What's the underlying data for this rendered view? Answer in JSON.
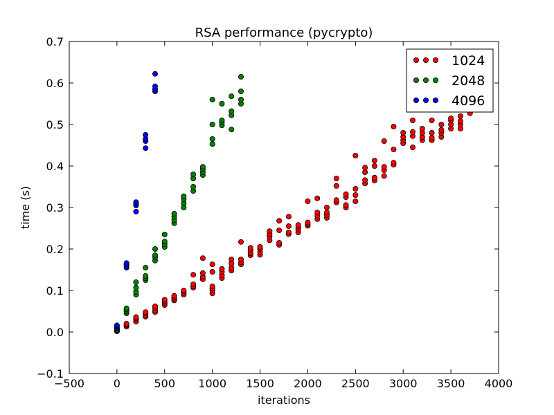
{
  "chart_data": {
    "type": "scatter",
    "title": "RSA performance (pycrypto)",
    "xlabel": "iterations",
    "ylabel": "time (s)",
    "xlim": [
      -500,
      4000
    ],
    "ylim": [
      -0.1,
      0.7
    ],
    "xticks": [
      -500,
      0,
      500,
      1000,
      1500,
      2000,
      2500,
      3000,
      3500,
      4000
    ],
    "xtick_labels": [
      "−500",
      "0",
      "500",
      "1000",
      "1500",
      "2000",
      "2500",
      "3000",
      "3500",
      "4000"
    ],
    "yticks": [
      -0.1,
      0.0,
      0.1,
      0.2,
      0.3,
      0.4,
      0.5,
      0.6,
      0.7
    ],
    "ytick_labels": [
      "−0.1",
      "0.0",
      "0.1",
      "0.2",
      "0.3",
      "0.4",
      "0.5",
      "0.6",
      "0.7"
    ],
    "grid": false,
    "legend_position": "top-right",
    "series": [
      {
        "name": "1024",
        "color": "#ff0000",
        "x": [
          0,
          0,
          0,
          0,
          100,
          100,
          100,
          100,
          200,
          200,
          200,
          200,
          300,
          300,
          300,
          300,
          400,
          400,
          400,
          400,
          500,
          500,
          500,
          500,
          600,
          600,
          600,
          600,
          700,
          700,
          700,
          700,
          800,
          800,
          800,
          800,
          900,
          900,
          900,
          900,
          1000,
          1000,
          1000,
          1000,
          1000,
          1000,
          1100,
          1100,
          1100,
          1100,
          1200,
          1200,
          1200,
          1200,
          1300,
          1300,
          1300,
          1300,
          1400,
          1400,
          1400,
          1400,
          1500,
          1500,
          1500,
          1500,
          1600,
          1600,
          1600,
          1600,
          1700,
          1700,
          1700,
          1700,
          1800,
          1800,
          1800,
          1800,
          1900,
          1900,
          1900,
          1900,
          2000,
          2000,
          2000,
          2000,
          2100,
          2100,
          2100,
          2100,
          2200,
          2200,
          2200,
          2200,
          2300,
          2300,
          2300,
          2300,
          2400,
          2400,
          2400,
          2400,
          2500,
          2500,
          2500,
          2500,
          2600,
          2600,
          2600,
          2600,
          2700,
          2700,
          2700,
          2700,
          2800,
          2800,
          2800,
          2800,
          2900,
          2900,
          2900,
          2900,
          3000,
          3000,
          3000,
          3000,
          3100,
          3100,
          3100,
          3100,
          3200,
          3200,
          3200,
          3200,
          3300,
          3300,
          3300,
          3300,
          3400,
          3400,
          3400,
          3400,
          3500,
          3500,
          3500,
          3500,
          3600,
          3600,
          3600,
          3600,
          3700,
          3700,
          3700
        ],
        "y": [
          0.002,
          0.004,
          0.006,
          0.008,
          0.013,
          0.016,
          0.018,
          0.02,
          0.025,
          0.03,
          0.033,
          0.036,
          0.037,
          0.04,
          0.045,
          0.048,
          0.048,
          0.052,
          0.058,
          0.062,
          0.065,
          0.07,
          0.074,
          0.078,
          0.076,
          0.08,
          0.083,
          0.087,
          0.09,
          0.094,
          0.098,
          0.1,
          0.107,
          0.11,
          0.115,
          0.138,
          0.127,
          0.133,
          0.142,
          0.178,
          0.093,
          0.1,
          0.105,
          0.11,
          0.145,
          0.163,
          0.13,
          0.137,
          0.145,
          0.152,
          0.148,
          0.155,
          0.165,
          0.175,
          0.163,
          0.168,
          0.175,
          0.217,
          0.185,
          0.19,
          0.197,
          0.203,
          0.186,
          0.193,
          0.2,
          0.205,
          0.221,
          0.23,
          0.236,
          0.243,
          0.21,
          0.215,
          0.245,
          0.268,
          0.236,
          0.24,
          0.255,
          0.278,
          0.24,
          0.247,
          0.253,
          0.258,
          0.256,
          0.26,
          0.264,
          0.315,
          0.272,
          0.28,
          0.288,
          0.322,
          0.275,
          0.282,
          0.288,
          0.3,
          0.312,
          0.318,
          0.352,
          0.37,
          0.3,
          0.306,
          0.325,
          0.332,
          0.315,
          0.33,
          0.345,
          0.425,
          0.358,
          0.366,
          0.385,
          0.396,
          0.365,
          0.372,
          0.4,
          0.413,
          0.376,
          0.39,
          0.398,
          0.46,
          0.403,
          0.408,
          0.44,
          0.495,
          0.455,
          0.462,
          0.47,
          0.48,
          0.445,
          0.472,
          0.482,
          0.51,
          0.462,
          0.47,
          0.48,
          0.49,
          0.462,
          0.468,
          0.48,
          0.51,
          0.47,
          0.48,
          0.487,
          0.5,
          0.49,
          0.5,
          0.51,
          0.515,
          0.49,
          0.5,
          0.508,
          0.52,
          0.527,
          0.54,
          0.56
        ]
      },
      {
        "name": "2048",
        "color": "#008000",
        "x": [
          0,
          0,
          0,
          0,
          100,
          100,
          100,
          100,
          200,
          200,
          200,
          200,
          300,
          300,
          300,
          300,
          400,
          400,
          400,
          400,
          500,
          500,
          500,
          500,
          600,
          600,
          600,
          600,
          700,
          700,
          700,
          700,
          800,
          800,
          800,
          800,
          900,
          900,
          900,
          900,
          1000,
          1000,
          1000,
          1000,
          1100,
          1100,
          1100,
          1100,
          1200,
          1200,
          1200,
          1200,
          1300,
          1300,
          1300,
          1300
        ],
        "y": [
          0.002,
          0.003,
          0.004,
          0.005,
          0.045,
          0.05,
          0.054,
          0.057,
          0.09,
          0.097,
          0.107,
          0.12,
          0.125,
          0.13,
          0.135,
          0.155,
          0.172,
          0.18,
          0.185,
          0.2,
          0.205,
          0.212,
          0.218,
          0.235,
          0.262,
          0.27,
          0.278,
          0.285,
          0.3,
          0.31,
          0.32,
          0.327,
          0.34,
          0.35,
          0.37,
          0.38,
          0.378,
          0.385,
          0.392,
          0.398,
          0.453,
          0.465,
          0.5,
          0.56,
          0.498,
          0.505,
          0.51,
          0.55,
          0.488,
          0.522,
          0.532,
          0.568,
          0.55,
          0.56,
          0.58,
          0.615
        ]
      },
      {
        "name": "4096",
        "color": "#0000ff",
        "x": [
          0,
          0,
          0,
          0,
          100,
          100,
          100,
          100,
          200,
          200,
          200,
          200,
          300,
          300,
          300,
          300,
          400,
          400,
          400,
          400
        ],
        "y": [
          0.008,
          0.012,
          0.014,
          0.016,
          0.155,
          0.16,
          0.163,
          0.166,
          0.29,
          0.305,
          0.31,
          0.313,
          0.443,
          0.46,
          0.465,
          0.475,
          0.58,
          0.585,
          0.592,
          0.622
        ]
      }
    ]
  }
}
